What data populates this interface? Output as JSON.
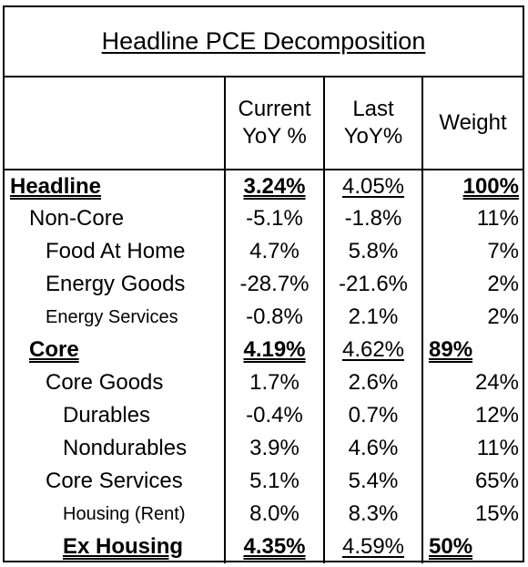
{
  "title": "Headline PCE Decomposition",
  "headers": {
    "col1": "",
    "current_line1": "Current",
    "current_line2": "YoY %",
    "last_line1": "Last",
    "last_line2": "YoY%",
    "weight": "Weight"
  },
  "rows": [
    {
      "label": "Headline",
      "current": "3.24%",
      "last": "4.05%",
      "weight": "100%"
    },
    {
      "label": "Non-Core",
      "current": "-5.1%",
      "last": "-1.8%",
      "weight": "11%"
    },
    {
      "label": "Food At Home",
      "current": "4.7%",
      "last": "5.8%",
      "weight": "7%"
    },
    {
      "label": "Energy Goods",
      "current": "-28.7%",
      "last": "-21.6%",
      "weight": "2%"
    },
    {
      "label": "Energy Services",
      "current": "-0.8%",
      "last": "2.1%",
      "weight": "2%"
    },
    {
      "label": "Core",
      "current": "4.19%",
      "last": "4.62%",
      "weight": "89%"
    },
    {
      "label": "Core Goods",
      "current": "1.7%",
      "last": "2.6%",
      "weight": "24%"
    },
    {
      "label": "Durables",
      "current": "-0.4%",
      "last": "0.7%",
      "weight": "12%"
    },
    {
      "label": "Nondurables",
      "current": "3.9%",
      "last": "4.6%",
      "weight": "11%"
    },
    {
      "label": "Core Services",
      "current": "5.1%",
      "last": "5.4%",
      "weight": "65%"
    },
    {
      "label": "Housing (Rent)",
      "current": "8.0%",
      "last": "8.3%",
      "weight": "15%"
    },
    {
      "label": "Ex Housing",
      "current": "4.35%",
      "last": "4.59%",
      "weight": "50%"
    }
  ]
}
